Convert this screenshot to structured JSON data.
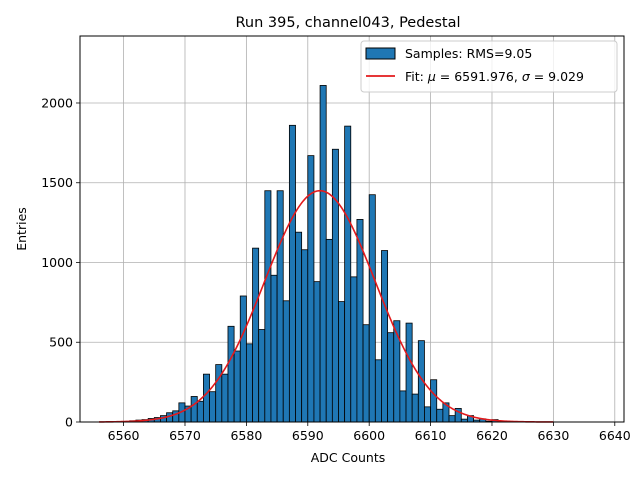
{
  "chart_data": {
    "type": "bar",
    "title": "Run 395, channel043, Pedestal",
    "xlabel": "ADC Counts",
    "ylabel": "Entries",
    "xlim": [
      6552.9,
      6641.5
    ],
    "ylim": [
      0,
      2420
    ],
    "xticks": [
      6560,
      6570,
      6580,
      6590,
      6600,
      6610,
      6620,
      6630,
      6640
    ],
    "yticks": [
      0,
      500,
      1000,
      1500,
      2000
    ],
    "grid": true,
    "legend_position": "top-right",
    "bin_edges_start": 6556,
    "bin_width": 1,
    "series": [
      {
        "name": "Samples: RMS=9.05",
        "kind": "histogram",
        "color": "#1f77b4",
        "edgecolor": "#000000",
        "values": [
          0,
          0,
          0,
          2,
          4,
          8,
          12,
          15,
          22,
          28,
          40,
          58,
          70,
          120,
          100,
          160,
          130,
          300,
          190,
          360,
          300,
          600,
          445,
          790,
          490,
          1090,
          580,
          1450,
          920,
          1450,
          760,
          1860,
          1190,
          1080,
          1670,
          880,
          2110,
          1145,
          1710,
          755,
          1855,
          910,
          1270,
          610,
          1425,
          390,
          1075,
          560,
          635,
          195,
          620,
          175,
          510,
          95,
          265,
          80,
          120,
          40,
          85,
          18,
          40,
          12,
          20,
          5,
          15,
          3,
          3,
          1,
          0,
          0,
          0,
          0,
          0,
          0,
          0,
          0,
          0,
          0,
          0,
          0,
          0,
          0
        ]
      }
    ],
    "fit": {
      "name": "Fit: μ = 6591.976, σ = 9.029",
      "mu": 6591.976,
      "sigma": 9.029,
      "amplitude": 1450,
      "x_range": [
        6556,
        6630
      ],
      "color": "#e31a1c"
    }
  },
  "legend": {
    "samples_label": "Samples: RMS=9.05",
    "fit_label_prefix": "Fit: ",
    "fit_mu_symbol": "μ",
    "fit_mu_value": " = 6591.976, ",
    "fit_sigma_symbol": "σ",
    "fit_sigma_value": " = 9.029"
  }
}
